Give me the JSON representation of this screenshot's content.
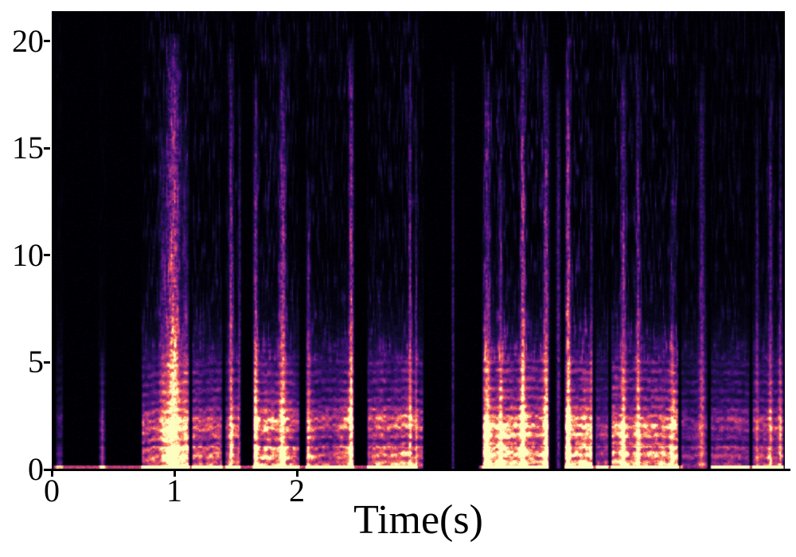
{
  "figure": {
    "background": "#ffffff",
    "text_color": "#000000",
    "axis_color": "#000000"
  },
  "chart_data": {
    "type": "heatmap",
    "subtype": "speech-spectrogram",
    "title": "",
    "xlabel": "Time(s)",
    "ylabel": "",
    "xlim": [
      0,
      5.98
    ],
    "ylim": [
      0,
      21.4
    ],
    "xticks": [
      "0",
      "1",
      "2"
    ],
    "xtick_values": [
      0,
      1,
      2
    ],
    "yticks": [
      "0",
      "5",
      "10",
      "15",
      "20"
    ],
    "ytick_values": [
      0,
      5,
      10,
      15,
      20
    ],
    "grid": false,
    "legend": false,
    "colormap": "magma",
    "colormap_stops": [
      [
        0.0,
        "#000004"
      ],
      [
        0.1,
        "#140e36"
      ],
      [
        0.2,
        "#3b0f70"
      ],
      [
        0.3,
        "#651a80"
      ],
      [
        0.4,
        "#8f2981"
      ],
      [
        0.5,
        "#b73779"
      ],
      [
        0.6,
        "#dd4968"
      ],
      [
        0.7,
        "#f56b5c"
      ],
      [
        0.8,
        "#fe9f6d"
      ],
      [
        0.9,
        "#fecb8d"
      ],
      [
        1.0,
        "#fcfdbf"
      ]
    ],
    "voiced_band_khz": 5.1,
    "baseline_band_khz": 0.22,
    "speech_segments": [
      {
        "t0": 0.02,
        "t1": 0.1,
        "amp": 0.32
      },
      {
        "t0": 0.37,
        "t1": 0.45,
        "amp": 0.3
      },
      {
        "t0": 0.72,
        "t1": 1.13,
        "amp": 1.0
      },
      {
        "t0": 1.13,
        "t1": 1.4,
        "amp": 0.95
      },
      {
        "t0": 1.4,
        "t1": 1.54,
        "amp": 0.82
      },
      {
        "t0": 1.63,
        "t1": 2.03,
        "amp": 0.95
      },
      {
        "t0": 2.06,
        "t1": 2.47,
        "amp": 0.92
      },
      {
        "t0": 2.56,
        "t1": 3.04,
        "amp": 0.82
      },
      {
        "t0": 3.5,
        "t1": 4.06,
        "amp": 1.0
      },
      {
        "t0": 4.17,
        "t1": 4.42,
        "amp": 0.95
      },
      {
        "t0": 4.42,
        "t1": 4.55,
        "amp": 0.5
      },
      {
        "t0": 4.55,
        "t1": 5.12,
        "amp": 0.85
      },
      {
        "t0": 5.12,
        "t1": 5.36,
        "amp": 0.45
      },
      {
        "t0": 5.36,
        "t1": 5.7,
        "amp": 0.6
      },
      {
        "t0": 5.7,
        "t1": 5.98,
        "amp": 0.62
      }
    ],
    "baseline_segments": [
      {
        "t0": 0.0,
        "t1": 2.99
      },
      {
        "t0": 3.47,
        "t1": 4.06
      },
      {
        "t0": 4.17,
        "t1": 5.15
      },
      {
        "t0": 5.36,
        "t1": 5.98
      }
    ],
    "wideband_bursts": [
      {
        "t": 0.41,
        "w": 0.012,
        "f_top": 5.5,
        "amp": 0.35
      },
      {
        "t": 0.9,
        "w": 0.03,
        "f_top": 16.0,
        "amp": 0.3
      },
      {
        "t": 0.99,
        "w": 0.055,
        "f_top": 20.4,
        "amp": 0.8
      },
      {
        "t": 1.09,
        "w": 0.025,
        "f_top": 17.0,
        "amp": 0.35
      },
      {
        "t": 1.46,
        "w": 0.018,
        "f_top": 20.0,
        "amp": 0.6
      },
      {
        "t": 1.53,
        "w": 0.012,
        "f_top": 18.0,
        "amp": 0.4
      },
      {
        "t": 1.66,
        "w": 0.02,
        "f_top": 18.5,
        "amp": 0.55
      },
      {
        "t": 1.88,
        "w": 0.028,
        "f_top": 20.0,
        "amp": 0.65
      },
      {
        "t": 2.09,
        "w": 0.018,
        "f_top": 14.0,
        "amp": 0.4
      },
      {
        "t": 2.44,
        "w": 0.02,
        "f_top": 20.2,
        "amp": 0.7
      },
      {
        "t": 2.92,
        "w": 0.014,
        "f_top": 19.5,
        "amp": 0.5
      },
      {
        "t": 2.97,
        "w": 0.01,
        "f_top": 18.0,
        "amp": 0.35
      },
      {
        "t": 3.27,
        "w": 0.012,
        "f_top": 19.0,
        "amp": 0.4
      },
      {
        "t": 3.55,
        "w": 0.028,
        "f_top": 19.0,
        "amp": 0.5
      },
      {
        "t": 3.66,
        "w": 0.018,
        "f_top": 17.0,
        "amp": 0.4
      },
      {
        "t": 3.84,
        "w": 0.02,
        "f_top": 20.3,
        "amp": 0.75
      },
      {
        "t": 4.03,
        "w": 0.026,
        "f_top": 19.5,
        "amp": 0.6
      },
      {
        "t": 4.13,
        "w": 0.018,
        "f_top": 18.0,
        "amp": 0.5
      },
      {
        "t": 4.21,
        "w": 0.02,
        "f_top": 20.2,
        "amp": 0.7
      },
      {
        "t": 4.4,
        "w": 0.014,
        "f_top": 16.0,
        "amp": 0.35
      },
      {
        "t": 4.66,
        "w": 0.022,
        "f_top": 19.5,
        "amp": 0.55
      },
      {
        "t": 4.78,
        "w": 0.018,
        "f_top": 19.0,
        "amp": 0.5
      },
      {
        "t": 5.06,
        "w": 0.018,
        "f_top": 15.0,
        "amp": 0.3
      },
      {
        "t": 5.3,
        "w": 0.025,
        "f_top": 19.0,
        "amp": 0.45
      },
      {
        "t": 5.75,
        "w": 0.016,
        "f_top": 17.0,
        "amp": 0.35
      },
      {
        "t": 5.86,
        "w": 0.018,
        "f_top": 19.0,
        "amp": 0.45
      },
      {
        "t": 5.94,
        "w": 0.014,
        "f_top": 18.0,
        "amp": 0.4
      }
    ]
  }
}
